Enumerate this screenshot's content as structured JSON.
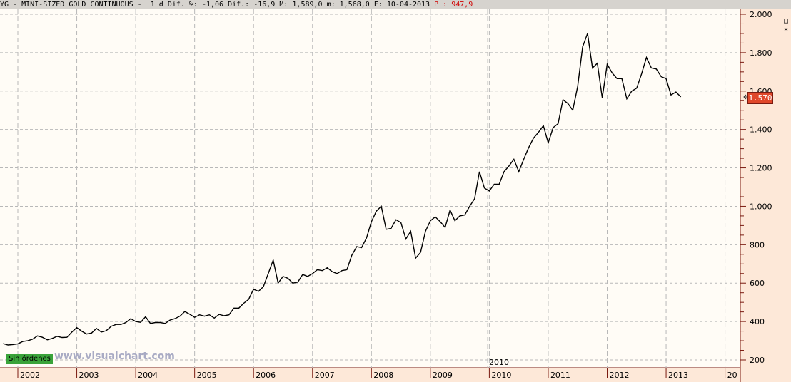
{
  "header": {
    "symbol": "YG - MINI-SIZED GOLD CONTINUOUS -  1 d",
    "stats": "Dif. %: -1,06 Dif.: -16,9 M: 1,589,0 m: 1,568,0 F: 10-04-2013",
    "p_label": "P : 947,9"
  },
  "window_buttons": [
    "_",
    "□",
    "×"
  ],
  "last_price_label": "1.570",
  "orders_label": "Sin órdenes",
  "watermark": "www.visualchart.com",
  "cursor_label": "2010",
  "colors": {
    "line": "#000000",
    "price_tag": "#e0472a",
    "axis_bg": "#fde8d8",
    "axis_line": "#7a1a10",
    "orders": "#3aa33a"
  },
  "chart_data": {
    "type": "line",
    "ylim": [
      200,
      2000
    ],
    "yticks": [
      200,
      400,
      600,
      800,
      1000,
      1200,
      1400,
      1600,
      1800,
      2000
    ],
    "ytick_labels": [
      "200",
      "400",
      "600",
      "800",
      "1.000",
      "1.200",
      "1.400",
      "1.600",
      "1.800",
      "2.000"
    ],
    "xticks": [
      "2002",
      "2003",
      "2004",
      "2005",
      "2006",
      "2007",
      "2008",
      "2009",
      "2010",
      "2011",
      "2012",
      "2013",
      "20"
    ],
    "grid": true,
    "last_value": 1570,
    "x": [
      "2001-10",
      "2001-11",
      "2001-12",
      "2002-01",
      "2002-02",
      "2002-03",
      "2002-04",
      "2002-05",
      "2002-06",
      "2002-07",
      "2002-08",
      "2002-09",
      "2002-10",
      "2002-11",
      "2002-12",
      "2003-01",
      "2003-02",
      "2003-03",
      "2003-04",
      "2003-05",
      "2003-06",
      "2003-07",
      "2003-08",
      "2003-09",
      "2003-10",
      "2003-11",
      "2003-12",
      "2004-01",
      "2004-02",
      "2004-03",
      "2004-04",
      "2004-05",
      "2004-06",
      "2004-07",
      "2004-08",
      "2004-09",
      "2004-10",
      "2004-11",
      "2004-12",
      "2005-01",
      "2005-02",
      "2005-03",
      "2005-04",
      "2005-05",
      "2005-06",
      "2005-07",
      "2005-08",
      "2005-09",
      "2005-10",
      "2005-11",
      "2005-12",
      "2006-01",
      "2006-02",
      "2006-03",
      "2006-04",
      "2006-05",
      "2006-06",
      "2006-07",
      "2006-08",
      "2006-09",
      "2006-10",
      "2006-11",
      "2006-12",
      "2007-01",
      "2007-02",
      "2007-03",
      "2007-04",
      "2007-05",
      "2007-06",
      "2007-07",
      "2007-08",
      "2007-09",
      "2007-10",
      "2007-11",
      "2007-12",
      "2008-01",
      "2008-02",
      "2008-03",
      "2008-04",
      "2008-05",
      "2008-06",
      "2008-07",
      "2008-08",
      "2008-09",
      "2008-10",
      "2008-11",
      "2008-12",
      "2009-01",
      "2009-02",
      "2009-03",
      "2009-04",
      "2009-05",
      "2009-06",
      "2009-07",
      "2009-08",
      "2009-09",
      "2009-10",
      "2009-11",
      "2009-12",
      "2010-01",
      "2010-02",
      "2010-03",
      "2010-04",
      "2010-05",
      "2010-06",
      "2010-07",
      "2010-08",
      "2010-09",
      "2010-10",
      "2010-11",
      "2010-12",
      "2011-01",
      "2011-02",
      "2011-03",
      "2011-04",
      "2011-05",
      "2011-06",
      "2011-07",
      "2011-08",
      "2011-09",
      "2011-10",
      "2011-11",
      "2011-12",
      "2012-01",
      "2012-02",
      "2012-03",
      "2012-04",
      "2012-05",
      "2012-06",
      "2012-07",
      "2012-08",
      "2012-09",
      "2012-10",
      "2012-11",
      "2012-12",
      "2013-01",
      "2013-02",
      "2013-03",
      "2013-04"
    ],
    "y": [
      285,
      278,
      280,
      284,
      296,
      300,
      308,
      325,
      318,
      305,
      312,
      323,
      317,
      318,
      345,
      368,
      350,
      335,
      340,
      364,
      345,
      352,
      375,
      385,
      385,
      395,
      415,
      400,
      396,
      425,
      390,
      395,
      395,
      390,
      408,
      415,
      428,
      452,
      438,
      422,
      435,
      428,
      435,
      418,
      437,
      430,
      435,
      470,
      470,
      495,
      515,
      568,
      557,
      582,
      650,
      720,
      600,
      635,
      625,
      600,
      605,
      645,
      635,
      650,
      670,
      665,
      680,
      660,
      650,
      665,
      670,
      745,
      790,
      785,
      835,
      920,
      975,
      1000,
      880,
      885,
      930,
      915,
      830,
      870,
      730,
      760,
      870,
      925,
      945,
      920,
      890,
      980,
      925,
      950,
      955,
      1000,
      1040,
      1180,
      1095,
      1080,
      1115,
      1115,
      1180,
      1210,
      1245,
      1180,
      1245,
      1305,
      1355,
      1385,
      1420,
      1330,
      1410,
      1430,
      1555,
      1535,
      1500,
      1625,
      1830,
      1900,
      1720,
      1745,
      1565,
      1740,
      1695,
      1665,
      1665,
      1560,
      1600,
      1615,
      1690,
      1775,
      1720,
      1715,
      1675,
      1665,
      1580,
      1595,
      1570
    ]
  }
}
